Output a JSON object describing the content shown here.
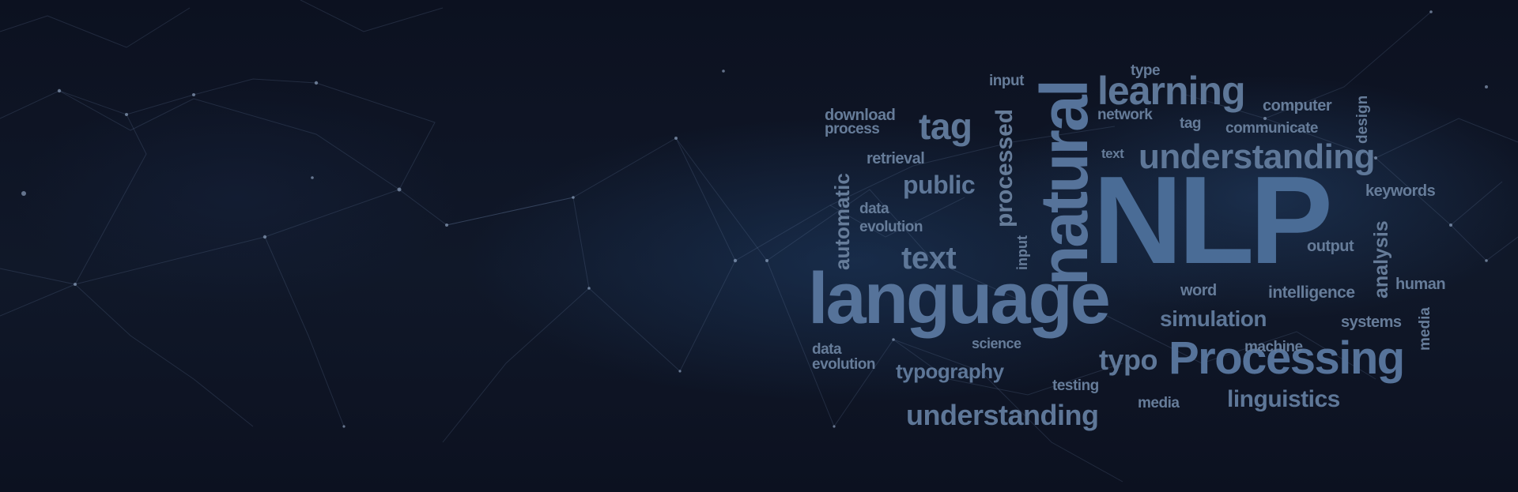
{
  "word_cloud": {
    "words": {
      "nlp": "NLP",
      "natural": "natural",
      "language": "language",
      "processing": "Processing",
      "learning": "learning",
      "understanding_top": "understanding",
      "understanding_bottom": "understanding",
      "tag_large": "tag",
      "tag_small": "tag",
      "text_large": "text",
      "text_small": "text",
      "public": "public",
      "processed": "processed",
      "automatic": "automatic",
      "analysis": "analysis",
      "design": "design",
      "media_vertical": "media",
      "media": "media",
      "input_top": "input",
      "input_vertical": "input",
      "type": "type",
      "computer": "computer",
      "network": "network",
      "communicate": "communicate",
      "download": "download",
      "process": "process",
      "retrieval": "retrieval",
      "data_1": "data",
      "evolution_1": "evolution",
      "data_2": "data",
      "evolution_2": "evolution",
      "keywords": "keywords",
      "output": "output",
      "human": "human",
      "intelligence": "intelligence",
      "word": "word",
      "simulation": "simulation",
      "systems": "systems",
      "machine": "machine",
      "science": "science",
      "typography": "typography",
      "typo": "typo",
      "testing": "testing",
      "linguistics": "linguistics"
    }
  }
}
